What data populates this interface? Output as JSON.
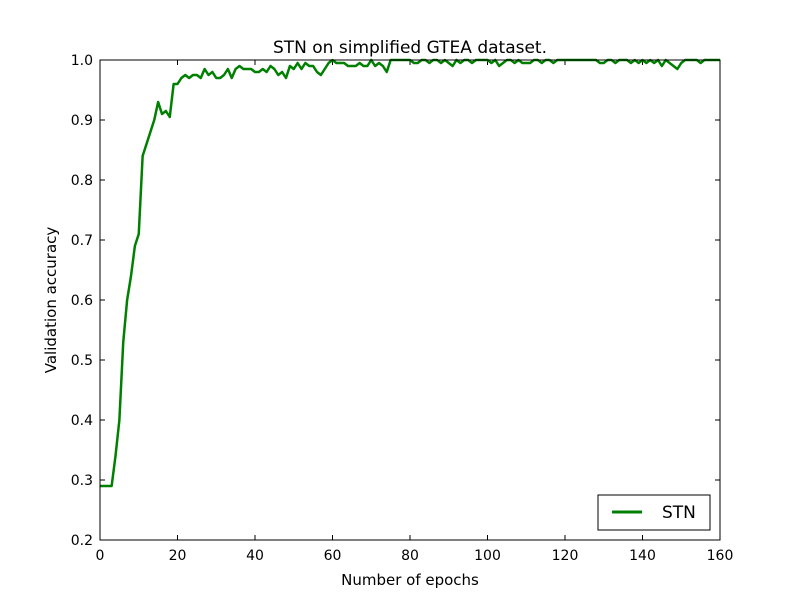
{
  "chart_data": {
    "type": "line",
    "title": "STN on simplified GTEA dataset.",
    "xlabel": "Number of epochs",
    "ylabel": "Validation accuracy",
    "xlim": [
      0,
      160
    ],
    "ylim": [
      0.2,
      1.0
    ],
    "x_ticks": [
      0,
      20,
      40,
      60,
      80,
      100,
      120,
      140,
      160
    ],
    "y_ticks": [
      0.2,
      0.3,
      0.4,
      0.5,
      0.6,
      0.7,
      0.8,
      0.9,
      1.0
    ],
    "x_tick_labels": [
      "0",
      "20",
      "40",
      "60",
      "80",
      "100",
      "120",
      "140",
      "160"
    ],
    "y_tick_labels": [
      "0.2",
      "0.3",
      "0.4",
      "0.5",
      "0.6",
      "0.7",
      "0.8",
      "0.9",
      "1.0"
    ],
    "grid": false,
    "legend_position": "lower-right",
    "series": [
      {
        "name": "STN",
        "color": "#008000",
        "x": [
          0,
          1,
          2,
          3,
          4,
          5,
          6,
          7,
          8,
          9,
          10,
          11,
          12,
          13,
          14,
          15,
          16,
          17,
          18,
          19,
          20,
          21,
          22,
          23,
          24,
          25,
          26,
          27,
          28,
          29,
          30,
          31,
          32,
          33,
          34,
          35,
          36,
          37,
          38,
          39,
          40,
          41,
          42,
          43,
          44,
          45,
          46,
          47,
          48,
          49,
          50,
          51,
          52,
          53,
          54,
          55,
          56,
          57,
          58,
          59,
          60,
          61,
          62,
          63,
          64,
          65,
          66,
          67,
          68,
          69,
          70,
          71,
          72,
          73,
          74,
          75,
          76,
          77,
          78,
          79,
          80,
          81,
          82,
          83,
          84,
          85,
          86,
          87,
          88,
          89,
          90,
          91,
          92,
          93,
          94,
          95,
          96,
          97,
          98,
          99,
          100,
          101,
          102,
          103,
          104,
          105,
          106,
          107,
          108,
          109,
          110,
          111,
          112,
          113,
          114,
          115,
          116,
          117,
          118,
          119,
          120,
          121,
          122,
          123,
          124,
          125,
          126,
          127,
          128,
          129,
          130,
          131,
          132,
          133,
          134,
          135,
          136,
          137,
          138,
          139,
          140,
          141,
          142,
          143,
          144,
          145,
          146,
          147,
          148,
          149,
          150,
          151,
          152,
          153,
          154,
          155,
          156,
          157,
          158,
          159,
          160
        ],
        "y": [
          0.29,
          0.29,
          0.29,
          0.29,
          0.34,
          0.4,
          0.53,
          0.6,
          0.64,
          0.69,
          0.71,
          0.84,
          0.86,
          0.88,
          0.9,
          0.93,
          0.91,
          0.915,
          0.905,
          0.96,
          0.96,
          0.97,
          0.975,
          0.97,
          0.975,
          0.975,
          0.97,
          0.985,
          0.975,
          0.98,
          0.97,
          0.97,
          0.975,
          0.985,
          0.97,
          0.985,
          0.99,
          0.985,
          0.985,
          0.985,
          0.98,
          0.98,
          0.985,
          0.98,
          0.99,
          0.985,
          0.975,
          0.98,
          0.97,
          0.99,
          0.985,
          0.995,
          0.985,
          0.995,
          0.99,
          0.99,
          0.98,
          0.975,
          0.985,
          0.995,
          1.0,
          0.995,
          0.995,
          0.995,
          0.99,
          0.99,
          0.99,
          0.995,
          0.99,
          0.99,
          1.0,
          0.99,
          0.995,
          0.99,
          0.98,
          1.0,
          1.0,
          1.0,
          1.0,
          1.0,
          1.0,
          0.995,
          0.995,
          1.0,
          1.0,
          0.995,
          1.0,
          1.0,
          0.995,
          1.0,
          0.995,
          0.99,
          1.0,
          0.995,
          1.0,
          1.0,
          0.995,
          1.0,
          1.0,
          1.0,
          1.0,
          0.995,
          1.0,
          0.99,
          0.995,
          1.0,
          1.0,
          0.995,
          1.0,
          0.995,
          0.995,
          0.995,
          1.0,
          1.0,
          0.995,
          1.0,
          1.0,
          0.995,
          1.0,
          1.0,
          1.0,
          1.0,
          1.0,
          1.0,
          1.0,
          1.0,
          1.0,
          1.0,
          1.0,
          0.995,
          0.995,
          1.0,
          1.0,
          0.995,
          1.0,
          1.0,
          1.0,
          0.995,
          1.0,
          0.995,
          1.0,
          0.995,
          1.0,
          0.995,
          1.0,
          0.99,
          1.0,
          0.995,
          0.99,
          0.985,
          0.995,
          1.0,
          1.0,
          1.0,
          1.0,
          0.995,
          1.0,
          1.0,
          1.0,
          1.0,
          1.0
        ]
      }
    ]
  }
}
